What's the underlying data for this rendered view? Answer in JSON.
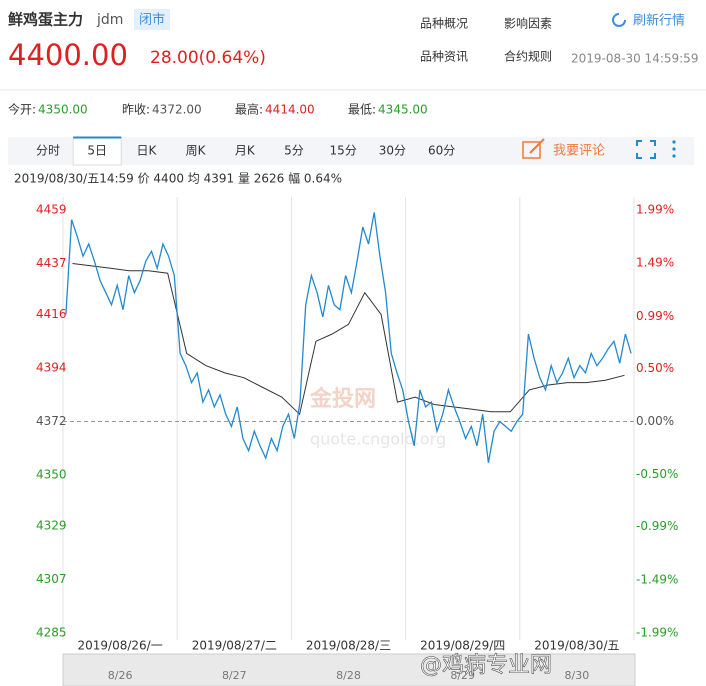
{
  "header": {
    "name": "鲜鸡蛋主力",
    "code": "jdm",
    "status": "闭市",
    "price": "4400.00",
    "change": "28.00(0.64%)",
    "links": [
      "品种概况",
      "影响因素",
      "品种资讯",
      "合约规则"
    ],
    "refresh": "刷新行情",
    "time": "2019-08-30 14:59:59"
  },
  "stats": [
    {
      "label": "今开:",
      "value": "4350.00",
      "color": "#2a9d2a"
    },
    {
      "label": "昨收:",
      "value": "4372.00",
      "color": "#555555"
    },
    {
      "label": "最高:",
      "value": "4414.00",
      "color": "#e02020"
    },
    {
      "label": "最低:",
      "value": "4345.00",
      "color": "#2a9d2a"
    }
  ],
  "tabs": [
    "分时",
    "5日",
    "日K",
    "周K",
    "月K",
    "5分",
    "15分",
    "30分",
    "60分"
  ],
  "active_tab": 1,
  "comment": "我要评论",
  "info": "2019/08/30/五14:59 价 4400 均 4391 量 2626 幅 0.64%",
  "chart_data": {
    "type": "line",
    "categories": [
      "2019/08/26/一",
      "2019/08/27/二",
      "2019/08/28/三",
      "2019/08/29/四",
      "2019/08/30/五"
    ],
    "series": [
      {
        "name": "价",
        "color": "#2389cf",
        "values": [
          [
            4416,
            4455,
            4448,
            4440,
            4445,
            4438,
            4430,
            4425,
            4420,
            4428,
            4418,
            4432,
            4425,
            4430,
            4438,
            4442,
            4435,
            4445,
            4440,
            4432
          ],
          [
            4400,
            4395,
            4388,
            4392,
            4380,
            4385,
            4378,
            4383,
            4375,
            4370,
            4378,
            4365,
            4360,
            4368,
            4362,
            4357,
            4365,
            4360,
            4370,
            4375
          ],
          [
            4365,
            4380,
            4420,
            4432,
            4425,
            4415,
            4428,
            4420,
            4418,
            4432,
            4425,
            4438,
            4452,
            4445,
            4458,
            4440,
            4425,
            4400,
            4392,
            4385
          ],
          [
            4372,
            4362,
            4385,
            4378,
            4380,
            4368,
            4375,
            4385,
            4378,
            4372,
            4365,
            4370,
            4362,
            4375,
            4355,
            4368,
            4372,
            4370,
            4368,
            4372
          ],
          [
            4375,
            4408,
            4398,
            4390,
            4385,
            4395,
            4388,
            4392,
            4398,
            4390,
            4395,
            4392,
            4400,
            4395,
            4398,
            4402,
            4405,
            4396,
            4408,
            4400
          ]
        ]
      },
      {
        "name": "均",
        "color": "#333333",
        "values": [
          [
            4437,
            4436,
            4435,
            4434,
            4434,
            4433
          ],
          [
            4400,
            4395,
            4392,
            4390,
            4386,
            4382
          ],
          [
            4375,
            4405,
            4408,
            4412,
            4425,
            4416,
            4380
          ],
          [
            4382,
            4379,
            4378,
            4377,
            4376,
            4376
          ],
          [
            4385,
            4387,
            4388,
            4388,
            4389,
            4391
          ]
        ]
      }
    ],
    "ylim": [
      4285,
      4459
    ],
    "yticks": [
      4459,
      4437,
      4416,
      4394,
      4372,
      4350,
      4329,
      4307,
      4285
    ],
    "y2lim": [
      -1.99,
      1.99
    ],
    "y2ticks": [
      {
        "value": 1.99,
        "label": "1.99%"
      },
      {
        "value": 1.49,
        "label": "1.49%"
      },
      {
        "value": 0.99,
        "label": "0.99%"
      },
      {
        "value": 0.5,
        "label": "0.50%"
      },
      {
        "value": 0,
        "label": "0.00%"
      },
      {
        "value": -0.5,
        "label": "-0.50%"
      },
      {
        "value": -0.99,
        "label": "-0.99%"
      },
      {
        "value": -1.49,
        "label": "-1.49%"
      },
      {
        "value": -1.99,
        "label": "-1.99%"
      }
    ]
  },
  "navigator_labels": [
    "8/26",
    "8/27",
    "8/28",
    "8/29",
    "8/30"
  ],
  "watermark": "@鸡病专业网"
}
